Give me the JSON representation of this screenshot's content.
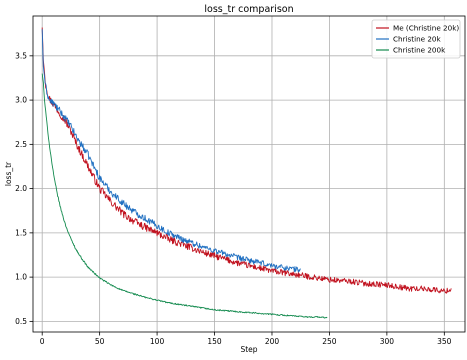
{
  "chart_data": {
    "type": "line",
    "title": "loss_tr comparison",
    "xlabel": "Step",
    "ylabel": "loss_tr",
    "xlim": [
      -8,
      368
    ],
    "ylim": [
      0.38,
      3.95
    ],
    "xticks": [
      0,
      50,
      100,
      150,
      200,
      250,
      300,
      350
    ],
    "yticks": [
      0.5,
      1.0,
      1.5,
      2.0,
      2.5,
      3.0,
      3.5
    ],
    "grid": true,
    "legend_position": "top-right",
    "series": [
      {
        "name": "Me (Christine 20k)",
        "color": "#c1121f",
        "x": [
          0,
          1,
          3,
          6,
          10,
          15,
          20,
          25,
          30,
          40,
          50,
          60,
          70,
          80,
          90,
          100,
          110,
          120,
          130,
          140,
          150,
          160,
          170,
          180,
          190,
          200,
          210,
          220,
          230,
          240,
          250,
          260,
          270,
          280,
          290,
          300,
          310,
          320,
          330,
          340,
          350,
          356
        ],
        "y": [
          3.82,
          3.45,
          3.18,
          3.02,
          2.95,
          2.86,
          2.77,
          2.65,
          2.5,
          2.25,
          2.0,
          1.85,
          1.72,
          1.63,
          1.56,
          1.5,
          1.43,
          1.38,
          1.33,
          1.28,
          1.24,
          1.2,
          1.16,
          1.13,
          1.1,
          1.07,
          1.05,
          1.03,
          1.01,
          0.99,
          0.97,
          0.96,
          0.95,
          0.93,
          0.92,
          0.91,
          0.89,
          0.87,
          0.87,
          0.86,
          0.84,
          0.86
        ]
      },
      {
        "name": "Christine 20k",
        "color": "#1f6fc1",
        "x": [
          0,
          1,
          3,
          6,
          10,
          15,
          20,
          25,
          30,
          40,
          50,
          60,
          70,
          80,
          90,
          100,
          110,
          120,
          130,
          140,
          150,
          160,
          170,
          180,
          190,
          200,
          210,
          220,
          225
        ],
        "y": [
          3.8,
          3.38,
          3.15,
          3.0,
          2.96,
          2.88,
          2.8,
          2.7,
          2.58,
          2.38,
          2.12,
          1.96,
          1.84,
          1.74,
          1.66,
          1.58,
          1.5,
          1.44,
          1.39,
          1.34,
          1.3,
          1.26,
          1.22,
          1.19,
          1.16,
          1.13,
          1.11,
          1.09,
          1.08
        ]
      },
      {
        "name": "Christine 200k",
        "color": "#138a4e",
        "x": [
          0,
          1,
          2,
          4,
          6,
          8,
          10,
          13,
          16,
          20,
          25,
          30,
          35,
          40,
          50,
          60,
          70,
          80,
          90,
          100,
          110,
          120,
          130,
          140,
          150,
          160,
          170,
          180,
          190,
          200,
          210,
          220,
          230,
          240,
          248
        ],
        "y": [
          3.3,
          3.2,
          3.0,
          2.75,
          2.52,
          2.33,
          2.15,
          1.95,
          1.78,
          1.6,
          1.43,
          1.3,
          1.2,
          1.11,
          0.99,
          0.91,
          0.85,
          0.81,
          0.77,
          0.74,
          0.71,
          0.69,
          0.67,
          0.65,
          0.63,
          0.62,
          0.61,
          0.6,
          0.59,
          0.58,
          0.57,
          0.56,
          0.55,
          0.55,
          0.54
        ]
      }
    ]
  }
}
